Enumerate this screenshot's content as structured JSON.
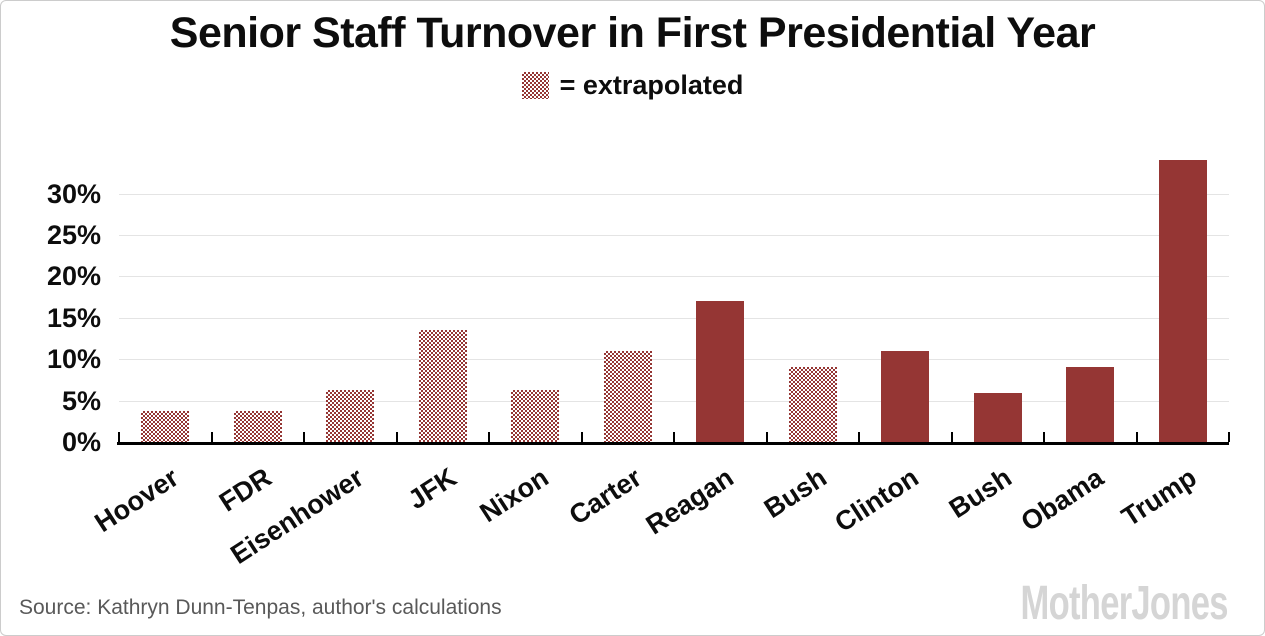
{
  "title": "Senior Staff Turnover in First Presidential Year",
  "legend": {
    "swatch_icon": "extrapolated-pattern-swatch",
    "label": "= extrapolated"
  },
  "footer": {
    "source": "Source: Kathryn Dunn-Tenpas, author's calculations",
    "brand": "MotherJones"
  },
  "colors": {
    "bar": "#953634",
    "grid": "#e4e4e4",
    "axis": "#000000",
    "text": "#0d0d0d",
    "source_text": "#595959",
    "brand": "#d5d5d5"
  },
  "chart_data": {
    "type": "bar",
    "title": "Senior Staff Turnover in First Presidential Year",
    "categories": [
      "Hoover",
      "FDR",
      "Eisenhower",
      "JFK",
      "Nixon",
      "Carter",
      "Reagan",
      "Bush",
      "Clinton",
      "Bush",
      "Obama",
      "Trump"
    ],
    "values": [
      3.8,
      3.8,
      6.3,
      13.5,
      6.3,
      11,
      17,
      9,
      11,
      5.9,
      9,
      34
    ],
    "extrapolated": [
      true,
      true,
      true,
      true,
      true,
      true,
      false,
      true,
      false,
      false,
      false,
      false
    ],
    "unit": "%",
    "xlabel": "",
    "ylabel": "",
    "yticks": [
      0,
      5,
      10,
      15,
      20,
      25,
      30
    ],
    "ytick_labels": [
      "0%",
      "5%",
      "10%",
      "15%",
      "20%",
      "25%",
      "30%"
    ],
    "ylim": [
      0,
      35.2
    ],
    "grid": true,
    "legend": "= extrapolated",
    "legend_position": "top-center"
  }
}
